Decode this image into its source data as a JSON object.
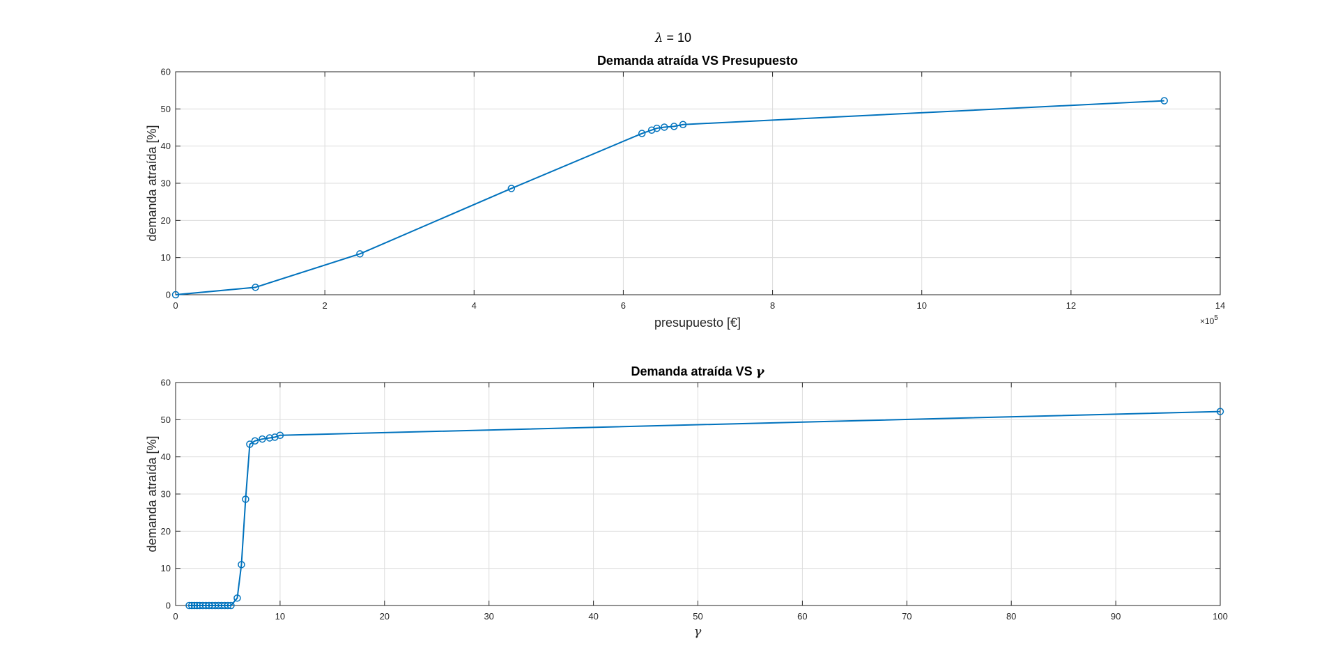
{
  "figure": {
    "suptitle_symbol": "λ",
    "suptitle_rest": " = 10"
  },
  "colors": {
    "series": "#0072BD",
    "axes": "#262626",
    "grid": "#dcdcdc",
    "background": "#ffffff"
  },
  "chart_data": [
    {
      "type": "line",
      "title": "Demanda atraída VS Presupuesto",
      "xlabel": "presupuesto [€]",
      "ylabel": "demanda atraída [%]",
      "x_exponent_label": "×10",
      "x_exponent_power": "5",
      "xlim": [
        0,
        14
      ],
      "ylim": [
        0,
        60
      ],
      "xticks": [
        0,
        2,
        4,
        6,
        8,
        10,
        12,
        14
      ],
      "yticks": [
        0,
        10,
        20,
        30,
        40,
        50,
        60
      ],
      "grid": true,
      "marker": "circle",
      "series": [
        {
          "x": [
            0,
            1.07,
            2.47,
            4.5,
            6.25,
            6.38,
            6.45,
            6.55,
            6.68,
            6.8,
            13.25
          ],
          "y": [
            0,
            2,
            11,
            28.6,
            43.4,
            44.3,
            44.8,
            45.1,
            45.3,
            45.8,
            52.2
          ]
        }
      ]
    },
    {
      "type": "line",
      "title_prefix": "Demanda atraída VS ",
      "title_symbol": "γ",
      "xlabel": "γ",
      "ylabel": "demanda atraída [%]",
      "xlim": [
        0,
        100
      ],
      "ylim": [
        0,
        60
      ],
      "xticks": [
        0,
        10,
        20,
        30,
        40,
        50,
        60,
        70,
        80,
        90,
        100
      ],
      "yticks": [
        0,
        10,
        20,
        30,
        40,
        50,
        60
      ],
      "grid": true,
      "marker": "circle",
      "series": [
        {
          "x": [
            1.3,
            1.55,
            1.8,
            2.05,
            2.3,
            2.6,
            2.9,
            3.2,
            3.5,
            3.8,
            4.1,
            4.4,
            4.7,
            5.0,
            5.3,
            5.9,
            6.3,
            6.7,
            7.1,
            7.6,
            8.3,
            9.0,
            9.5,
            10.0,
            100
          ],
          "y": [
            0,
            0,
            0,
            0,
            0,
            0,
            0,
            0,
            0,
            0,
            0,
            0,
            0,
            0,
            0,
            2,
            11,
            28.6,
            43.4,
            44.3,
            44.8,
            45.1,
            45.3,
            45.8,
            52.2
          ]
        }
      ]
    }
  ]
}
